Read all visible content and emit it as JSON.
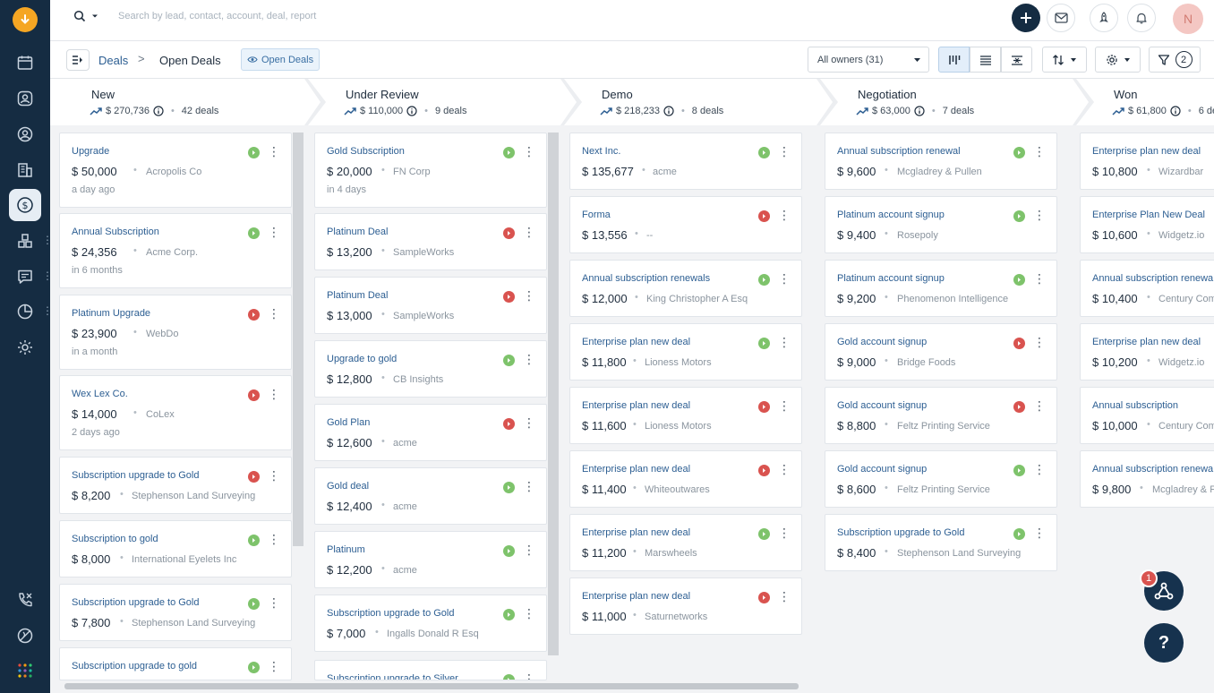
{
  "search": {
    "placeholder": "Search by lead, contact, account, deal, report"
  },
  "user": {
    "initial": "N"
  },
  "breadcrumb": {
    "root": "Deals",
    "separator": ">",
    "current": "Open Deals"
  },
  "view_chip": {
    "label": "Open Deals"
  },
  "owner_filter": {
    "value": "All owners (31)"
  },
  "filter": {
    "count": "2"
  },
  "notifications": {
    "badge": "1"
  },
  "help": {
    "label": "?"
  },
  "colors": {
    "sidebar": "#152c42",
    "accent_link": "#2c5e92",
    "won_status": "#7ec36b",
    "lost_status": "#d9534f"
  },
  "stages": [
    {
      "name": "New",
      "amount": "$ 270,736",
      "deals": "42 deals",
      "cards": [
        {
          "title": "Upgrade",
          "amount": "$ 50,000",
          "company": "Acropolis Co",
          "time": "a day ago",
          "status": "green"
        },
        {
          "title": "Annual Subscription",
          "amount": "$ 24,356",
          "company": "Acme Corp.",
          "time": "in 6 months",
          "status": "green"
        },
        {
          "title": "Platinum Upgrade",
          "amount": "$ 23,900",
          "company": "WebDo",
          "time": "in a month",
          "status": "red"
        },
        {
          "title": "Wex Lex Co.",
          "amount": "$ 14,000",
          "company": "CoLex",
          "time": "2 days ago",
          "status": "red"
        },
        {
          "title": "Subscription upgrade to Gold",
          "amount": "$ 8,200",
          "company": "Stephenson Land Surveying",
          "time": "",
          "status": "red"
        },
        {
          "title": "Subscription to gold",
          "amount": "$ 8,000",
          "company": "International Eyelets Inc",
          "time": "",
          "status": "green"
        },
        {
          "title": "Subscription upgrade to Gold",
          "amount": "$ 7,800",
          "company": "Stephenson Land Surveying",
          "time": "",
          "status": "green"
        },
        {
          "title": "Subscription upgrade to gold",
          "amount": "",
          "company": "",
          "time": "",
          "status": "green"
        }
      ]
    },
    {
      "name": "Under Review",
      "amount": "$ 110,000",
      "deals": "9 deals",
      "cards": [
        {
          "title": "Gold Subscription",
          "amount": "$ 20,000",
          "company": "FN Corp",
          "time": "in 4 days",
          "status": "green"
        },
        {
          "title": "Platinum Deal",
          "amount": "$ 13,200",
          "company": "SampleWorks",
          "time": "",
          "status": "red"
        },
        {
          "title": "Platinum Deal",
          "amount": "$ 13,000",
          "company": "SampleWorks",
          "time": "",
          "status": "red"
        },
        {
          "title": "Upgrade to gold",
          "amount": "$ 12,800",
          "company": "CB Insights",
          "time": "",
          "status": "green"
        },
        {
          "title": "Gold Plan",
          "amount": "$ 12,600",
          "company": "acme",
          "time": "",
          "status": "red"
        },
        {
          "title": "Gold deal",
          "amount": "$ 12,400",
          "company": "acme",
          "time": "",
          "status": "green"
        },
        {
          "title": "Platinum",
          "amount": "$ 12,200",
          "company": "acme",
          "time": "",
          "status": "green"
        },
        {
          "title": "Subscription upgrade to Gold",
          "amount": "$ 7,000",
          "company": "Ingalls Donald R Esq",
          "time": "",
          "status": "green"
        },
        {
          "title": "Subscription upgrade to Silver",
          "amount": "",
          "company": "",
          "time": "",
          "status": "green"
        }
      ]
    },
    {
      "name": "Demo",
      "amount": "$ 218,233",
      "deals": "8 deals",
      "cards": [
        {
          "title": "Next Inc.",
          "amount": "$ 135,677",
          "company": "acme",
          "time": "",
          "status": "green"
        },
        {
          "title": "Forma",
          "amount": "$ 13,556",
          "company": "--",
          "time": "",
          "status": "red"
        },
        {
          "title": "Annual subscription renewals",
          "amount": "$ 12,000",
          "company": "King Christopher A Esq",
          "time": "",
          "status": "green"
        },
        {
          "title": "Enterprise plan new deal",
          "amount": "$ 11,800",
          "company": "Lioness Motors",
          "time": "",
          "status": "green"
        },
        {
          "title": "Enterprise plan new deal",
          "amount": "$ 11,600",
          "company": "Lioness Motors",
          "time": "",
          "status": "red"
        },
        {
          "title": "Enterprise plan new deal",
          "amount": "$ 11,400",
          "company": "Whiteoutwares",
          "time": "",
          "status": "red"
        },
        {
          "title": "Enterprise plan new deal",
          "amount": "$ 11,200",
          "company": "Marswheels",
          "time": "",
          "status": "green"
        },
        {
          "title": "Enterprise plan new deal",
          "amount": "$ 11,000",
          "company": "Saturnetworks",
          "time": "",
          "status": "red"
        }
      ]
    },
    {
      "name": "Negotiation",
      "amount": "$ 63,000",
      "deals": "7 deals",
      "cards": [
        {
          "title": "Annual subscription renewal",
          "amount": "$ 9,600",
          "company": "Mcgladrey & Pullen",
          "time": "",
          "status": "green"
        },
        {
          "title": "Platinum account signup",
          "amount": "$ 9,400",
          "company": "Rosepoly",
          "time": "",
          "status": "green"
        },
        {
          "title": "Platinum account signup",
          "amount": "$ 9,200",
          "company": "Phenomenon Intelligence",
          "time": "",
          "status": "green"
        },
        {
          "title": "Gold account signup",
          "amount": "$ 9,000",
          "company": "Bridge Foods",
          "time": "",
          "status": "red"
        },
        {
          "title": "Gold account signup",
          "amount": "$ 8,800",
          "company": "Feltz Printing Service",
          "time": "",
          "status": "red"
        },
        {
          "title": "Gold account signup",
          "amount": "$ 8,600",
          "company": "Feltz Printing Service",
          "time": "",
          "status": "green"
        },
        {
          "title": "Subscription upgrade to Gold",
          "amount": "$ 8,400",
          "company": "Stephenson Land Surveying",
          "time": "",
          "status": "green"
        }
      ]
    },
    {
      "name": "Won",
      "amount": "$ 61,800",
      "deals": "6 de",
      "cards": [
        {
          "title": "Enterprise plan new deal",
          "amount": "$ 10,800",
          "company": "Wizardbar",
          "time": "",
          "status": ""
        },
        {
          "title": "Enterprise Plan New Deal",
          "amount": "$ 10,600",
          "company": "Widgetz.io",
          "time": "",
          "status": ""
        },
        {
          "title": "Annual subscription renewa",
          "amount": "$ 10,400",
          "company": "Century Comi",
          "time": "",
          "status": ""
        },
        {
          "title": "Enterprise plan new deal",
          "amount": "$ 10,200",
          "company": "Widgetz.io",
          "time": "",
          "status": ""
        },
        {
          "title": "Annual subscription",
          "amount": "$ 10,000",
          "company": "Century Comi",
          "time": "",
          "status": ""
        },
        {
          "title": "Annual subscription renewa",
          "amount": "$ 9,800",
          "company": "Mcgladrey & P",
          "time": "",
          "status": ""
        }
      ]
    }
  ]
}
